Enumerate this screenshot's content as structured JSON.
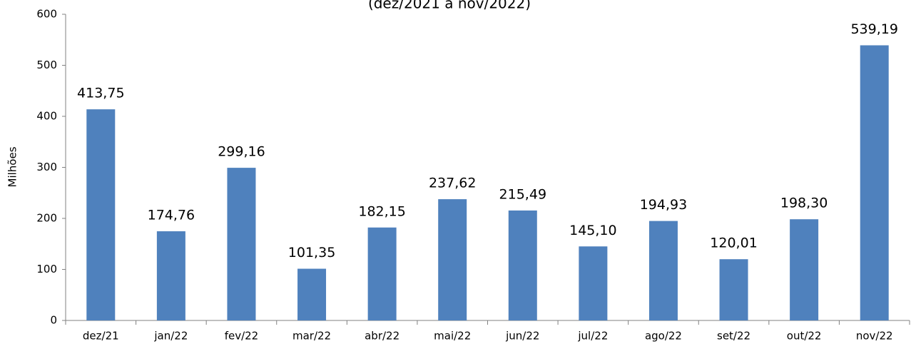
{
  "chart_data": {
    "type": "bar",
    "title": "(dez/2021 a nov/2022)",
    "y_label": "Milhões",
    "categories": [
      "dez/21",
      "jan/22",
      "fev/22",
      "mar/22",
      "abr/22",
      "mai/22",
      "jun/22",
      "jul/22",
      "ago/22",
      "set/22",
      "out/22",
      "nov/22"
    ],
    "values": [
      413.75,
      174.76,
      299.16,
      101.35,
      182.15,
      237.62,
      215.49,
      145.1,
      194.93,
      120.01,
      198.3,
      539.19
    ],
    "value_labels": [
      "413,75",
      "174,76",
      "299,16",
      "101,35",
      "182,15",
      "237,62",
      "215,49",
      "145,10",
      "194,93",
      "120,01",
      "198,30",
      "539,19"
    ],
    "color": "#4f81bd",
    "ylim": [
      0,
      600
    ],
    "yticks": [
      0,
      100,
      200,
      300,
      400,
      500,
      600
    ],
    "grid": false
  }
}
